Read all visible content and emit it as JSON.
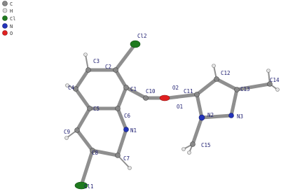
{
  "legend": [
    "C",
    "H",
    "Cl",
    "N",
    "O"
  ],
  "nodes": [
    {
      "label": "Cl2"
    },
    {
      "label": "C2"
    },
    {
      "label": "C3"
    },
    {
      "label": "C1"
    },
    {
      "label": "C10"
    },
    {
      "label": "O2"
    },
    {
      "label": "C11"
    },
    {
      "label": "C12"
    },
    {
      "label": "C13"
    },
    {
      "label": "C14"
    },
    {
      "label": "C4"
    },
    {
      "label": "C5"
    },
    {
      "label": "C6"
    },
    {
      "label": "O1"
    },
    {
      "label": "N2"
    },
    {
      "label": "N3"
    },
    {
      "label": "C9"
    },
    {
      "label": "N1"
    },
    {
      "label": "C8"
    },
    {
      "label": "C7"
    },
    {
      "label": "C15"
    },
    {
      "label": "Cl1"
    }
  ]
}
